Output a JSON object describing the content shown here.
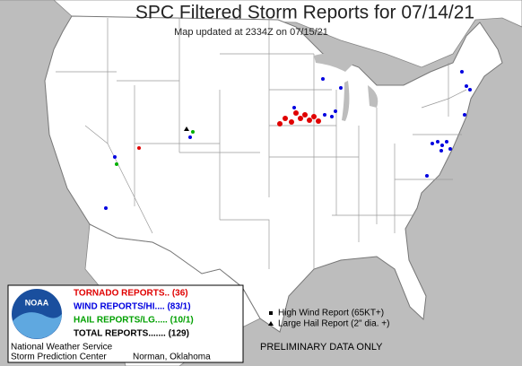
{
  "header": {
    "title": "SPC Filtered Storm Reports for 07/14/21",
    "subtitle": "Map updated at 2334Z on 07/15/21"
  },
  "legend": {
    "tornado": "TORNADO REPORTS.. (36)",
    "wind": "WIND REPORTS/HI.... (83/1)",
    "hail": "HAIL REPORTS/LG..... (10/1)",
    "total": "TOTAL REPORTS....... (129)"
  },
  "logo": {
    "text": "NOAA"
  },
  "footer": {
    "org": "National Weather Service",
    "center": "Storm Prediction Center",
    "location": "Norman, Oklahoma"
  },
  "key": {
    "high_wind": "High Wind Report (65KT+)",
    "large_hail": "Large Hail Report (2\" dia. +)"
  },
  "notice": "PRELIMINARY DATA ONLY"
}
